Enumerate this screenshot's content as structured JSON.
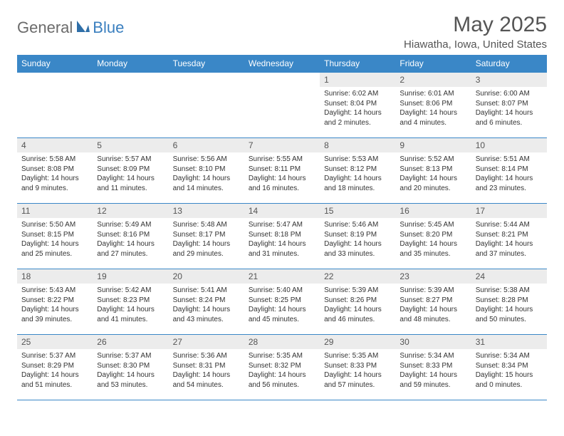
{
  "brand": {
    "part1": "General",
    "part2": "Blue"
  },
  "title": "May 2025",
  "location": "Hiawatha, Iowa, United States",
  "colors": {
    "header_bg": "#3a87c7",
    "header_text": "#ffffff",
    "daynum_bg": "#ececec",
    "border": "#3a87c7",
    "brand_gray": "#6b6b6b",
    "brand_blue": "#3a7fbf"
  },
  "day_headers": [
    "Sunday",
    "Monday",
    "Tuesday",
    "Wednesday",
    "Thursday",
    "Friday",
    "Saturday"
  ],
  "weeks": [
    [
      {
        "n": "",
        "sr": "",
        "ss": "",
        "dl": ""
      },
      {
        "n": "",
        "sr": "",
        "ss": "",
        "dl": ""
      },
      {
        "n": "",
        "sr": "",
        "ss": "",
        "dl": ""
      },
      {
        "n": "",
        "sr": "",
        "ss": "",
        "dl": ""
      },
      {
        "n": "1",
        "sr": "Sunrise: 6:02 AM",
        "ss": "Sunset: 8:04 PM",
        "dl": "Daylight: 14 hours and 2 minutes."
      },
      {
        "n": "2",
        "sr": "Sunrise: 6:01 AM",
        "ss": "Sunset: 8:06 PM",
        "dl": "Daylight: 14 hours and 4 minutes."
      },
      {
        "n": "3",
        "sr": "Sunrise: 6:00 AM",
        "ss": "Sunset: 8:07 PM",
        "dl": "Daylight: 14 hours and 6 minutes."
      }
    ],
    [
      {
        "n": "4",
        "sr": "Sunrise: 5:58 AM",
        "ss": "Sunset: 8:08 PM",
        "dl": "Daylight: 14 hours and 9 minutes."
      },
      {
        "n": "5",
        "sr": "Sunrise: 5:57 AM",
        "ss": "Sunset: 8:09 PM",
        "dl": "Daylight: 14 hours and 11 minutes."
      },
      {
        "n": "6",
        "sr": "Sunrise: 5:56 AM",
        "ss": "Sunset: 8:10 PM",
        "dl": "Daylight: 14 hours and 14 minutes."
      },
      {
        "n": "7",
        "sr": "Sunrise: 5:55 AM",
        "ss": "Sunset: 8:11 PM",
        "dl": "Daylight: 14 hours and 16 minutes."
      },
      {
        "n": "8",
        "sr": "Sunrise: 5:53 AM",
        "ss": "Sunset: 8:12 PM",
        "dl": "Daylight: 14 hours and 18 minutes."
      },
      {
        "n": "9",
        "sr": "Sunrise: 5:52 AM",
        "ss": "Sunset: 8:13 PM",
        "dl": "Daylight: 14 hours and 20 minutes."
      },
      {
        "n": "10",
        "sr": "Sunrise: 5:51 AM",
        "ss": "Sunset: 8:14 PM",
        "dl": "Daylight: 14 hours and 23 minutes."
      }
    ],
    [
      {
        "n": "11",
        "sr": "Sunrise: 5:50 AM",
        "ss": "Sunset: 8:15 PM",
        "dl": "Daylight: 14 hours and 25 minutes."
      },
      {
        "n": "12",
        "sr": "Sunrise: 5:49 AM",
        "ss": "Sunset: 8:16 PM",
        "dl": "Daylight: 14 hours and 27 minutes."
      },
      {
        "n": "13",
        "sr": "Sunrise: 5:48 AM",
        "ss": "Sunset: 8:17 PM",
        "dl": "Daylight: 14 hours and 29 minutes."
      },
      {
        "n": "14",
        "sr": "Sunrise: 5:47 AM",
        "ss": "Sunset: 8:18 PM",
        "dl": "Daylight: 14 hours and 31 minutes."
      },
      {
        "n": "15",
        "sr": "Sunrise: 5:46 AM",
        "ss": "Sunset: 8:19 PM",
        "dl": "Daylight: 14 hours and 33 minutes."
      },
      {
        "n": "16",
        "sr": "Sunrise: 5:45 AM",
        "ss": "Sunset: 8:20 PM",
        "dl": "Daylight: 14 hours and 35 minutes."
      },
      {
        "n": "17",
        "sr": "Sunrise: 5:44 AM",
        "ss": "Sunset: 8:21 PM",
        "dl": "Daylight: 14 hours and 37 minutes."
      }
    ],
    [
      {
        "n": "18",
        "sr": "Sunrise: 5:43 AM",
        "ss": "Sunset: 8:22 PM",
        "dl": "Daylight: 14 hours and 39 minutes."
      },
      {
        "n": "19",
        "sr": "Sunrise: 5:42 AM",
        "ss": "Sunset: 8:23 PM",
        "dl": "Daylight: 14 hours and 41 minutes."
      },
      {
        "n": "20",
        "sr": "Sunrise: 5:41 AM",
        "ss": "Sunset: 8:24 PM",
        "dl": "Daylight: 14 hours and 43 minutes."
      },
      {
        "n": "21",
        "sr": "Sunrise: 5:40 AM",
        "ss": "Sunset: 8:25 PM",
        "dl": "Daylight: 14 hours and 45 minutes."
      },
      {
        "n": "22",
        "sr": "Sunrise: 5:39 AM",
        "ss": "Sunset: 8:26 PM",
        "dl": "Daylight: 14 hours and 46 minutes."
      },
      {
        "n": "23",
        "sr": "Sunrise: 5:39 AM",
        "ss": "Sunset: 8:27 PM",
        "dl": "Daylight: 14 hours and 48 minutes."
      },
      {
        "n": "24",
        "sr": "Sunrise: 5:38 AM",
        "ss": "Sunset: 8:28 PM",
        "dl": "Daylight: 14 hours and 50 minutes."
      }
    ],
    [
      {
        "n": "25",
        "sr": "Sunrise: 5:37 AM",
        "ss": "Sunset: 8:29 PM",
        "dl": "Daylight: 14 hours and 51 minutes."
      },
      {
        "n": "26",
        "sr": "Sunrise: 5:37 AM",
        "ss": "Sunset: 8:30 PM",
        "dl": "Daylight: 14 hours and 53 minutes."
      },
      {
        "n": "27",
        "sr": "Sunrise: 5:36 AM",
        "ss": "Sunset: 8:31 PM",
        "dl": "Daylight: 14 hours and 54 minutes."
      },
      {
        "n": "28",
        "sr": "Sunrise: 5:35 AM",
        "ss": "Sunset: 8:32 PM",
        "dl": "Daylight: 14 hours and 56 minutes."
      },
      {
        "n": "29",
        "sr": "Sunrise: 5:35 AM",
        "ss": "Sunset: 8:33 PM",
        "dl": "Daylight: 14 hours and 57 minutes."
      },
      {
        "n": "30",
        "sr": "Sunrise: 5:34 AM",
        "ss": "Sunset: 8:33 PM",
        "dl": "Daylight: 14 hours and 59 minutes."
      },
      {
        "n": "31",
        "sr": "Sunrise: 5:34 AM",
        "ss": "Sunset: 8:34 PM",
        "dl": "Daylight: 15 hours and 0 minutes."
      }
    ]
  ]
}
